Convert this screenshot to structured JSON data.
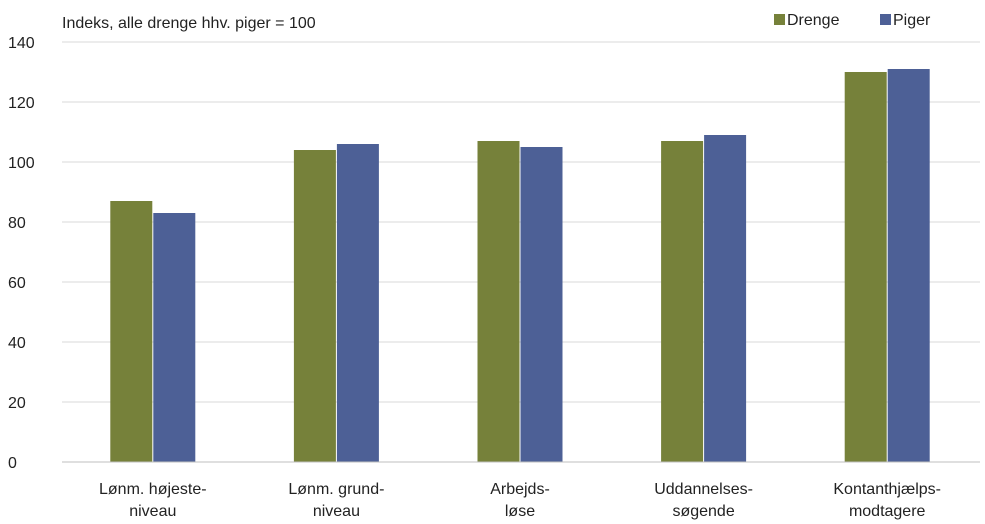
{
  "chart_data": {
    "type": "bar",
    "ylabel": "Indeks, alle drenge hhv. piger = 100",
    "ylim": [
      0,
      140
    ],
    "yticks": [
      0,
      20,
      40,
      60,
      80,
      100,
      120,
      140
    ],
    "grid": true,
    "legend_position": "top-right",
    "categories": [
      [
        "Lønm. højeste-",
        "niveau"
      ],
      [
        "Lønm. grund-",
        "niveau"
      ],
      [
        "Arbejds-",
        "løse"
      ],
      [
        "Uddannelses-",
        "søgende"
      ],
      [
        "Kontanthjælps-",
        "modtagere"
      ]
    ],
    "series": [
      {
        "name": "Drenge",
        "color": "#76813a",
        "values": [
          87,
          104,
          107,
          107,
          130
        ]
      },
      {
        "name": "Piger",
        "color": "#4d6096",
        "values": [
          83,
          106,
          105,
          109,
          131
        ]
      }
    ]
  }
}
